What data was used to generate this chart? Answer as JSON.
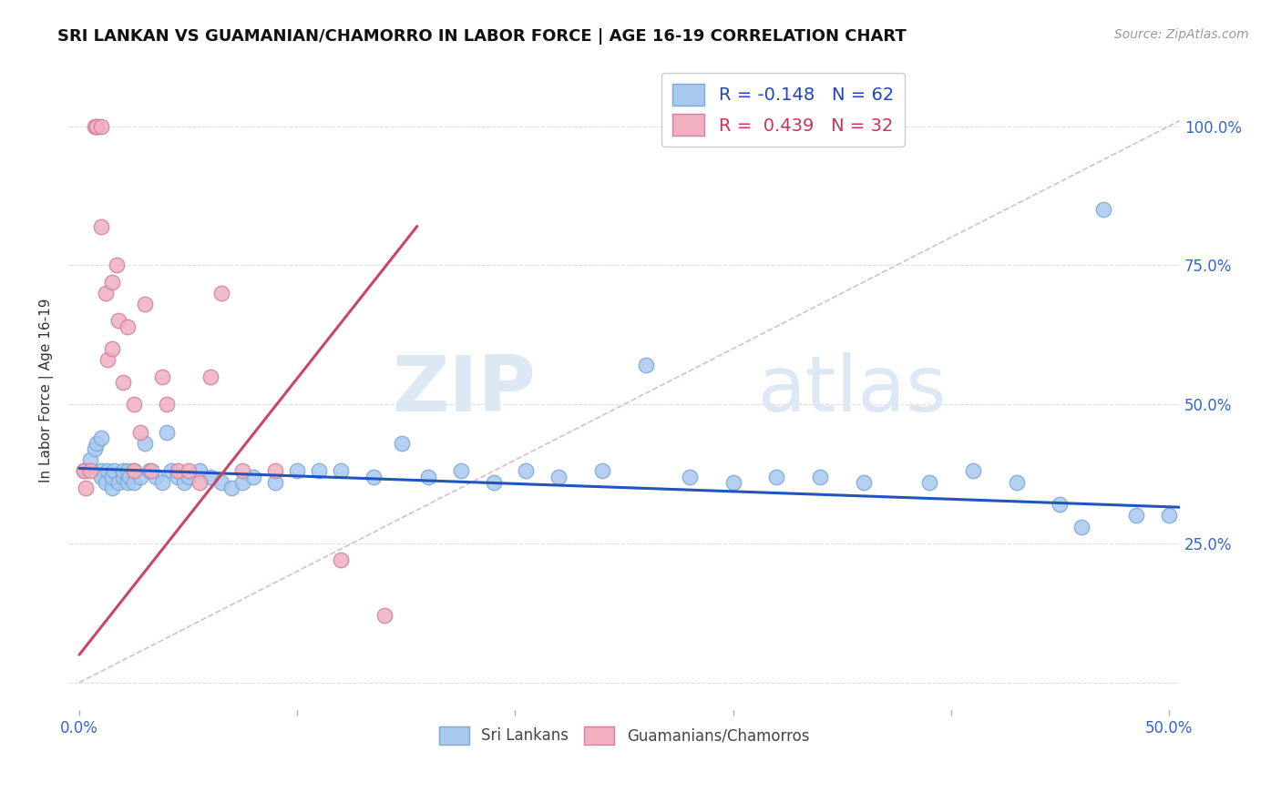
{
  "title": "SRI LANKAN VS GUAMANIAN/CHAMORRO IN LABOR FORCE | AGE 16-19 CORRELATION CHART",
  "source": "Source: ZipAtlas.com",
  "ylabel": "In Labor Force | Age 16-19",
  "xlim": [
    -0.005,
    0.505
  ],
  "ylim": [
    -0.05,
    1.1
  ],
  "x_ticks": [
    0.0,
    0.1,
    0.2,
    0.3,
    0.4,
    0.5
  ],
  "x_tick_labels": [
    "0.0%",
    "",
    "",
    "",
    "",
    "50.0%"
  ],
  "y_ticks": [
    0.0,
    0.25,
    0.5,
    0.75,
    1.0
  ],
  "y_tick_labels_right": [
    "",
    "25.0%",
    "50.0%",
    "75.0%",
    "100.0%"
  ],
  "blue_color": "#a8c8f0",
  "blue_edge_color": "#7aaad0",
  "pink_color": "#f0b0c0",
  "pink_edge_color": "#d080a0",
  "blue_line_color": "#2255bb",
  "pink_line_color": "#cc4466",
  "diag_color": "#ddbbcc",
  "grid_color": "#ddddee",
  "blue_line_x": [
    0.0,
    0.505
  ],
  "blue_line_y": [
    0.385,
    0.315
  ],
  "pink_line_x": [
    0.0,
    0.155
  ],
  "pink_line_y": [
    0.05,
    0.82
  ],
  "diag_line_x": [
    0.0,
    0.505
  ],
  "diag_line_y": [
    0.0,
    1.01
  ],
  "blue_x": [
    0.002,
    0.005,
    0.007,
    0.008,
    0.01,
    0.01,
    0.01,
    0.012,
    0.013,
    0.015,
    0.015,
    0.016,
    0.018,
    0.02,
    0.02,
    0.022,
    0.022,
    0.023,
    0.025,
    0.025,
    0.028,
    0.03,
    0.032,
    0.035,
    0.038,
    0.04,
    0.042,
    0.045,
    0.048,
    0.05,
    0.055,
    0.06,
    0.065,
    0.07,
    0.075,
    0.08,
    0.09,
    0.1,
    0.11,
    0.12,
    0.135,
    0.148,
    0.16,
    0.175,
    0.19,
    0.205,
    0.22,
    0.24,
    0.26,
    0.28,
    0.3,
    0.32,
    0.34,
    0.36,
    0.39,
    0.41,
    0.43,
    0.45,
    0.46,
    0.47,
    0.485,
    0.5
  ],
  "blue_y": [
    0.38,
    0.4,
    0.42,
    0.43,
    0.44,
    0.38,
    0.37,
    0.36,
    0.38,
    0.35,
    0.37,
    0.38,
    0.36,
    0.37,
    0.38,
    0.36,
    0.38,
    0.37,
    0.36,
    0.38,
    0.37,
    0.43,
    0.38,
    0.37,
    0.36,
    0.45,
    0.38,
    0.37,
    0.36,
    0.37,
    0.38,
    0.37,
    0.36,
    0.35,
    0.36,
    0.37,
    0.36,
    0.38,
    0.38,
    0.38,
    0.37,
    0.43,
    0.37,
    0.38,
    0.36,
    0.38,
    0.37,
    0.38,
    0.57,
    0.37,
    0.36,
    0.37,
    0.37,
    0.36,
    0.36,
    0.38,
    0.36,
    0.32,
    0.28,
    0.85,
    0.3,
    0.3
  ],
  "pink_x": [
    0.002,
    0.003,
    0.005,
    0.007,
    0.008,
    0.008,
    0.01,
    0.01,
    0.012,
    0.013,
    0.015,
    0.015,
    0.017,
    0.018,
    0.02,
    0.022,
    0.025,
    0.025,
    0.028,
    0.03,
    0.033,
    0.038,
    0.04,
    0.045,
    0.05,
    0.055,
    0.06,
    0.065,
    0.075,
    0.09,
    0.12,
    0.14
  ],
  "pink_y": [
    0.38,
    0.35,
    0.38,
    1.0,
    1.0,
    1.0,
    1.0,
    0.82,
    0.7,
    0.58,
    0.72,
    0.6,
    0.75,
    0.65,
    0.54,
    0.64,
    0.5,
    0.38,
    0.45,
    0.68,
    0.38,
    0.55,
    0.5,
    0.38,
    0.38,
    0.36,
    0.55,
    0.7,
    0.38,
    0.38,
    0.22,
    0.12
  ],
  "watermark_zip": "ZIP",
  "watermark_atlas": "atlas",
  "legend_labels": [
    "R = -0.148   N = 62",
    "R =  0.439   N = 32"
  ],
  "bottom_labels": [
    "Sri Lankans",
    "Guamanians/Chamorros"
  ]
}
